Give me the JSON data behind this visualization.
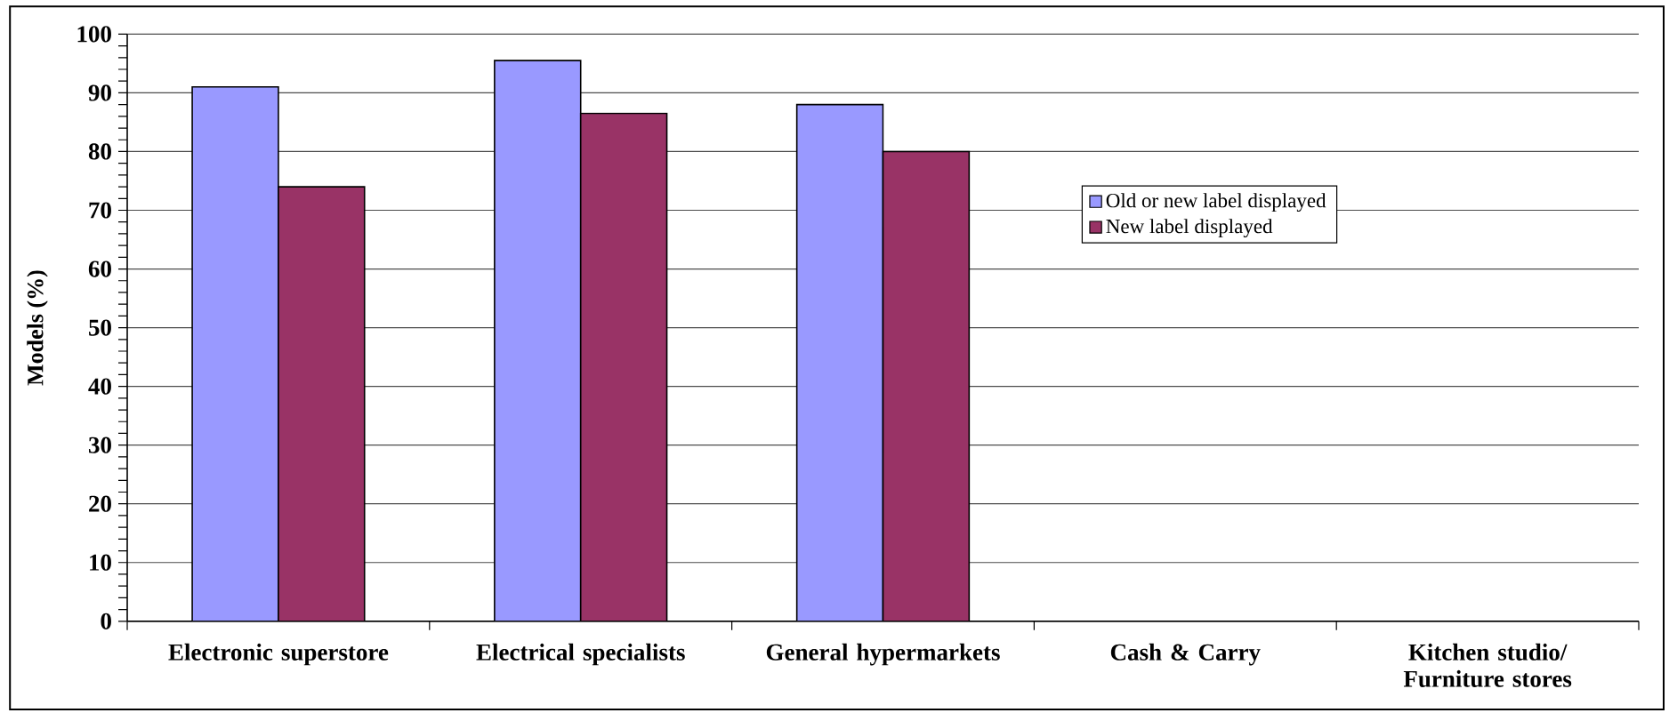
{
  "chart_data": {
    "type": "bar",
    "ylabel": "Models (%)",
    "categories": [
      "Electronic superstore",
      "Electrical specialists",
      "General hypermarkets",
      "Cash & Carry",
      "Kitchen studio/ Furniture stores"
    ],
    "series": [
      {
        "name": "Old or new label displayed",
        "color": "#9999ff",
        "values": [
          91,
          95.5,
          88,
          null,
          null
        ]
      },
      {
        "name": "New label displayed",
        "color": "#993366",
        "values": [
          74,
          86.5,
          80,
          null,
          null
        ]
      }
    ],
    "ylim": [
      0,
      100
    ],
    "yticks": [
      0,
      10,
      20,
      30,
      40,
      50,
      60,
      70,
      80,
      90,
      100
    ],
    "grid": "y",
    "legend": "top right"
  }
}
